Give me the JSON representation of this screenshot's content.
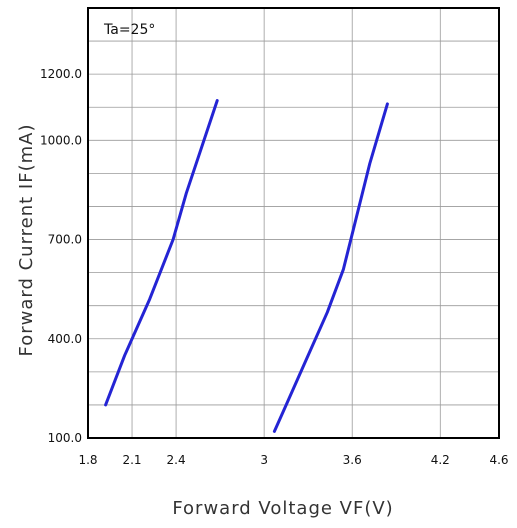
{
  "chart_data": {
    "type": "line",
    "annotation": "Ta=25°",
    "xlabel": "Forward Voltage VF(V)",
    "ylabel": "Forward Current IF(mA)",
    "xlim": [
      1.8,
      4.6
    ],
    "ylim": [
      100,
      1400
    ],
    "x_ticks": [
      "1.8",
      "2.1",
      "2.4",
      "3",
      "3.6",
      "4.2",
      "4.6"
    ],
    "y_ticks": [
      "100.0",
      "400.0",
      "700.0",
      "1000.0",
      "1200.0"
    ],
    "grid": true,
    "series": [
      {
        "color": "#2424d4",
        "x": [
          1.92,
          2.05,
          2.22,
          2.38,
          2.47,
          2.68
        ],
        "y": [
          200,
          350,
          520,
          700,
          840,
          1120
        ]
      },
      {
        "color": "#2424d4",
        "x": [
          3.07,
          3.15,
          3.29,
          3.43,
          3.54,
          3.72,
          3.84
        ],
        "y": [
          120,
          200,
          340,
          480,
          610,
          930,
          1110
        ]
      }
    ]
  }
}
